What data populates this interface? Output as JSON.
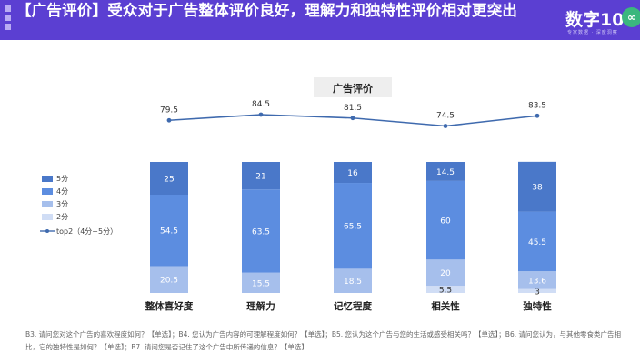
{
  "header": {
    "title": "【广告评价】受众对于广告整体评价良好，理解力和独特性评价相对更突出",
    "logo_text": "数字10",
    "logo_mark": "∞",
    "logo_sub": "专家数据 · 深度洞察"
  },
  "colors": {
    "header_bg": "#5b3fd2",
    "score5": "#4a78c9",
    "score4": "#5c8de0",
    "score3": "#a6bfec",
    "score2": "#d0ddf5",
    "line": "#3f6aae"
  },
  "chart_data": {
    "type": "bar",
    "title": "广告评价",
    "categories": [
      "整体喜好度",
      "理解力",
      "记忆程度",
      "相关性",
      "独特性"
    ],
    "series": [
      {
        "name": "2分",
        "values": [
          0,
          0,
          0,
          5.5,
          3
        ],
        "labels": [
          "",
          "",
          "",
          "5.5",
          "3"
        ]
      },
      {
        "name": "3分",
        "values": [
          20.5,
          15.5,
          18.5,
          20,
          13.6
        ],
        "labels": [
          "20.5",
          "15.5",
          "18.5",
          "20",
          "13.6"
        ]
      },
      {
        "name": "4分",
        "values": [
          54.5,
          63.5,
          65.5,
          60,
          45.5
        ],
        "labels": [
          "54.5",
          "63.5",
          "65.5",
          "60",
          "45.5"
        ]
      },
      {
        "name": "5分",
        "values": [
          25,
          21,
          16,
          14.5,
          38
        ],
        "labels": [
          "25",
          "21",
          "16",
          "14.5",
          "38"
        ]
      }
    ],
    "line": {
      "name": "top2（4分+5分）",
      "values": [
        79.5,
        84.5,
        81.5,
        74.5,
        83.5
      ]
    },
    "legend": [
      "5分",
      "4分",
      "3分",
      "2分",
      "top2（4分+5分）"
    ],
    "legend_position": "left"
  },
  "footnote": "B3. 请问您对这个广告的喜欢程度如何？【单选】；B4. 您认为广告内容的可理解程度如何？【单选】；B5. 您认为这个广告与您的生活或感受相关吗？【单选】；B6. 请问您认为，与其他零食类广告相比，它的独特性是如何？【单选】；B7. 请问您是否记住了这个广告中所传递的信息？【单选】"
}
